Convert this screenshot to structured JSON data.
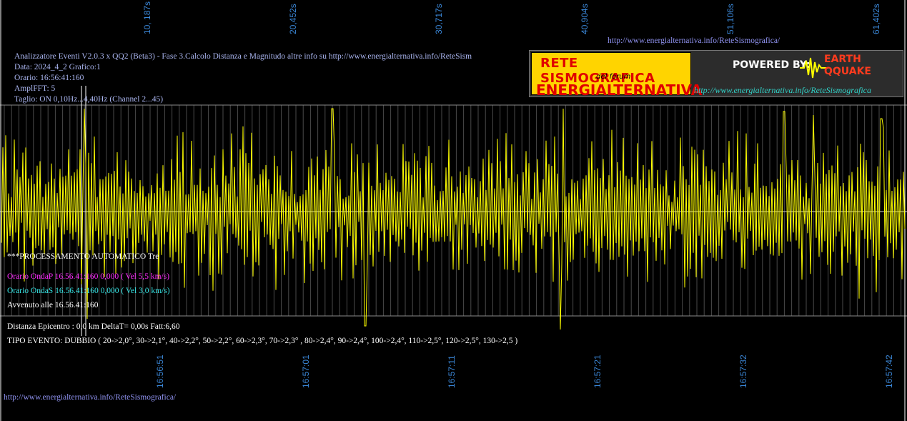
{
  "time_axis_top": [
    "10, 187s",
    "20,452s",
    "30,717s",
    "40,904s",
    "51,106s",
    "61,402s"
  ],
  "time_axis_bottom": [
    "16:56:51",
    "16:57:01",
    "16:57:11",
    "16:57:21",
    "16:57:32",
    "16:57:42"
  ],
  "urls": {
    "top": "http://www.energialternativa.info/ReteSismografica/",
    "bottom": "http://www.energialternativa.info/ReteSismografica/"
  },
  "header_info": [
    "Analizzatore Eventi V2.0.3 x QQ2 (Beta3) - Fase 3.Calcolo Distanza e Magnitudo altre info su http://www.energialternativa.info/ReteSism",
    "Data: 2024_4_2 Grafico:1",
    "Orario: 16:56:41:160",
    "AmplFFT: 5",
    "Taglio: ON 0,10Hz...4,40Hz      (Channel 2...45)"
  ],
  "logo": {
    "title_line1": "RETE SISMOGRAFICA",
    "subtitle": "del forum",
    "title_line2": "ENERGIALTERNATIVA",
    "powered_by": "POWERED BY:",
    "brand_line1": "EARTH",
    "brand_line2": "QQUAKE",
    "url": "http://www.energialternativa.info/ReteSismografica"
  },
  "analysis": {
    "processing": "***PROCESSAMENTO AUTOMATICO Tre",
    "wave_p": "Orario OndaP 16.56.41:160  0,000 ( Vel 5,5 km/s)",
    "wave_s": "Orario OndaS 16.56.41:160  0,000 ( Vel 3,0 km/s)",
    "occurred": "Avvenuto alle 16.56.41:160",
    "distance": "Distanza Epicentro : 0,0 km DeltaT= 0,00s  Fatt:6,60",
    "event_type": "TIPO EVENTO: DUBBIO ( 20->2,0°, 30->2,1°, 40->2,2°, 50->2,2°, 60->2,3°, 70->2,3° , 80->2,4°, 90->2,4°, 100->2,4°, 110->2,5°, 120->2,5°, 130->2,5 )"
  },
  "colors": {
    "background": "#000000",
    "trace": "#ffff00",
    "grid": "#6a6a6a",
    "axis_labels": "#3a86d6",
    "wave_p": "#ff2bff",
    "wave_s": "#37e6e6"
  }
}
